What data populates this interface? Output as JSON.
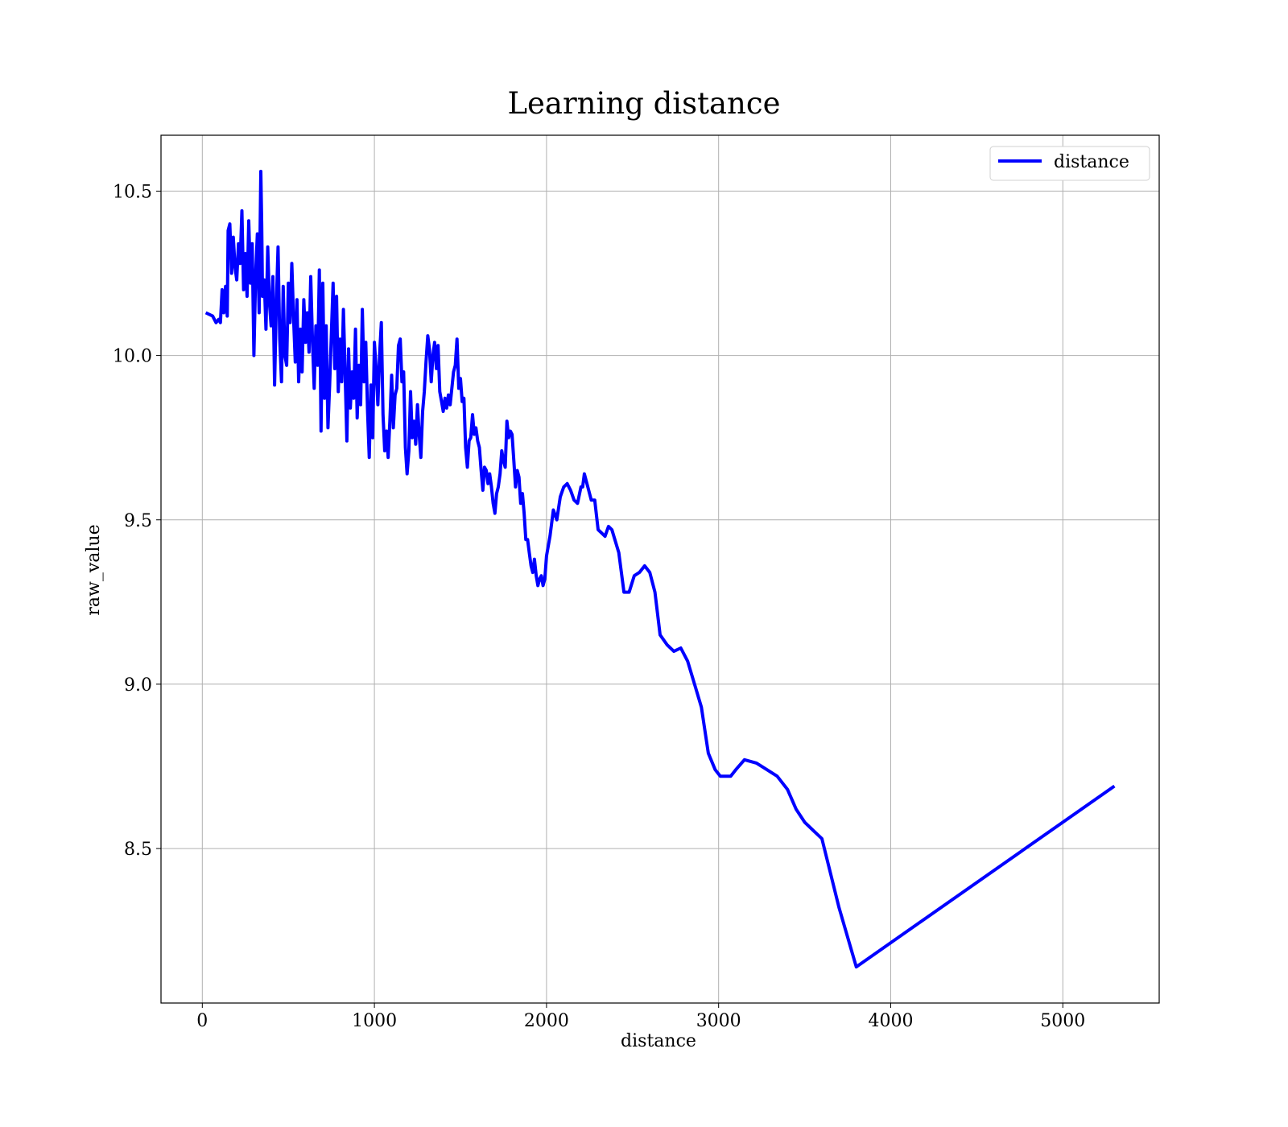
{
  "chart_data": {
    "type": "line",
    "title": "Learning distance",
    "xlabel": "distance",
    "ylabel": "raw_value",
    "xlim": [
      -240,
      5560
    ],
    "ylim": [
      8.03,
      10.67
    ],
    "xticks": [
      0,
      1000,
      2000,
      3000,
      4000,
      5000
    ],
    "xtick_labels": [
      "0",
      "1000",
      "2000",
      "3000",
      "4000",
      "5000"
    ],
    "yticks": [
      8.5,
      9.0,
      9.5,
      10.0,
      10.5
    ],
    "ytick_labels": [
      "8.5",
      "9.0",
      "9.5",
      "10.0",
      "10.5"
    ],
    "grid": true,
    "legend_position": "top-right",
    "series": [
      {
        "name": "distance",
        "color": "#0000ff",
        "x": [
          20,
          60,
          80,
          95,
          105,
          115,
          125,
          135,
          145,
          150,
          160,
          170,
          180,
          190,
          200,
          210,
          220,
          230,
          240,
          250,
          260,
          270,
          280,
          290,
          300,
          310,
          320,
          330,
          340,
          345,
          350,
          360,
          370,
          380,
          390,
          400,
          410,
          420,
          430,
          440,
          450,
          460,
          470,
          480,
          490,
          500,
          510,
          520,
          530,
          540,
          550,
          560,
          570,
          580,
          590,
          600,
          610,
          620,
          630,
          640,
          650,
          660,
          670,
          680,
          690,
          700,
          710,
          720,
          730,
          740,
          750,
          760,
          770,
          780,
          790,
          800,
          810,
          820,
          830,
          840,
          850,
          860,
          870,
          880,
          890,
          900,
          910,
          920,
          930,
          940,
          950,
          960,
          970,
          980,
          990,
          1000,
          1010,
          1020,
          1030,
          1040,
          1050,
          1060,
          1070,
          1080,
          1090,
          1100,
          1110,
          1120,
          1130,
          1140,
          1150,
          1160,
          1170,
          1180,
          1190,
          1200,
          1210,
          1220,
          1230,
          1240,
          1250,
          1260,
          1270,
          1280,
          1290,
          1300,
          1310,
          1320,
          1330,
          1340,
          1350,
          1360,
          1370,
          1380,
          1390,
          1400,
          1410,
          1420,
          1430,
          1440,
          1450,
          1460,
          1470,
          1480,
          1490,
          1500,
          1510,
          1520,
          1530,
          1540,
          1550,
          1560,
          1570,
          1580,
          1590,
          1600,
          1610,
          1620,
          1630,
          1640,
          1650,
          1660,
          1670,
          1680,
          1690,
          1700,
          1710,
          1720,
          1730,
          1740,
          1750,
          1760,
          1770,
          1780,
          1790,
          1800,
          1810,
          1820,
          1830,
          1840,
          1850,
          1860,
          1870,
          1880,
          1890,
          1900,
          1910,
          1920,
          1930,
          1940,
          1950,
          1960,
          1970,
          1980,
          1990,
          2000,
          2020,
          2040,
          2060,
          2080,
          2100,
          2120,
          2140,
          2160,
          2180,
          2200,
          2210,
          2220,
          2240,
          2260,
          2280,
          2300,
          2320,
          2340,
          2360,
          2380,
          2420,
          2450,
          2480,
          2510,
          2540,
          2570,
          2600,
          2630,
          2660,
          2700,
          2740,
          2780,
          2820,
          2860,
          2900,
          2940,
          2980,
          3010,
          3070,
          3100,
          3150,
          3220,
          3280,
          3340,
          3400,
          3450,
          3500,
          3560,
          3600,
          3700,
          3800,
          5300
        ],
        "values": [
          10.13,
          10.12,
          10.1,
          10.11,
          10.1,
          10.2,
          10.13,
          10.21,
          10.12,
          10.38,
          10.4,
          10.25,
          10.36,
          10.27,
          10.23,
          10.34,
          10.28,
          10.44,
          10.2,
          10.31,
          10.18,
          10.41,
          10.22,
          10.34,
          10.0,
          10.25,
          10.37,
          10.13,
          10.56,
          10.4,
          10.18,
          10.23,
          10.08,
          10.33,
          10.16,
          10.09,
          10.24,
          9.91,
          10.15,
          10.33,
          10.05,
          9.92,
          10.21,
          10.0,
          9.97,
          10.22,
          10.1,
          10.28,
          10.12,
          9.98,
          10.17,
          9.92,
          10.08,
          9.95,
          10.17,
          10.04,
          10.13,
          10.01,
          10.24,
          10.05,
          9.9,
          10.09,
          9.97,
          10.26,
          9.77,
          10.22,
          9.87,
          10.09,
          9.78,
          9.91,
          10.07,
          10.22,
          9.96,
          10.18,
          9.89,
          10.05,
          9.92,
          10.14,
          9.94,
          9.74,
          10.02,
          9.84,
          9.95,
          9.87,
          10.08,
          9.81,
          9.97,
          9.85,
          10.14,
          9.92,
          10.04,
          9.83,
          9.69,
          9.91,
          9.75,
          10.04,
          9.96,
          9.85,
          10.0,
          10.1,
          9.82,
          9.71,
          9.77,
          9.69,
          9.8,
          9.94,
          9.78,
          9.88,
          9.9,
          10.03,
          10.05,
          9.92,
          9.95,
          9.72,
          9.64,
          9.71,
          9.89,
          9.75,
          9.8,
          9.73,
          9.85,
          9.76,
          9.69,
          9.83,
          9.89,
          9.98,
          10.06,
          10.02,
          9.92,
          10.0,
          10.04,
          9.96,
          10.03,
          9.89,
          9.86,
          9.83,
          9.87,
          9.84,
          9.88,
          9.85,
          9.9,
          9.95,
          9.97,
          10.05,
          9.9,
          9.93,
          9.86,
          9.87,
          9.72,
          9.66,
          9.74,
          9.75,
          9.82,
          9.76,
          9.78,
          9.74,
          9.72,
          9.65,
          9.59,
          9.66,
          9.65,
          9.61,
          9.64,
          9.6,
          9.55,
          9.52,
          9.58,
          9.6,
          9.64,
          9.71,
          9.68,
          9.66,
          9.8,
          9.75,
          9.77,
          9.76,
          9.68,
          9.6,
          9.65,
          9.63,
          9.55,
          9.58,
          9.52,
          9.44,
          9.44,
          9.4,
          9.36,
          9.34,
          9.38,
          9.33,
          9.3,
          9.32,
          9.33,
          9.3,
          9.32,
          9.39,
          9.45,
          9.53,
          9.5,
          9.57,
          9.6,
          9.61,
          9.59,
          9.56,
          9.55,
          9.6,
          9.6,
          9.64,
          9.6,
          9.56,
          9.56,
          9.47,
          9.46,
          9.45,
          9.48,
          9.47,
          9.4,
          9.28,
          9.28,
          9.33,
          9.34,
          9.36,
          9.34,
          9.28,
          9.15,
          9.12,
          9.1,
          9.11,
          9.07,
          9.0,
          8.93,
          8.79,
          8.74,
          8.72,
          8.72,
          8.74,
          8.77,
          8.76,
          8.74,
          8.72,
          8.68,
          8.62,
          8.58,
          8.55,
          8.53,
          8.32,
          8.14,
          8.69
        ]
      }
    ]
  }
}
